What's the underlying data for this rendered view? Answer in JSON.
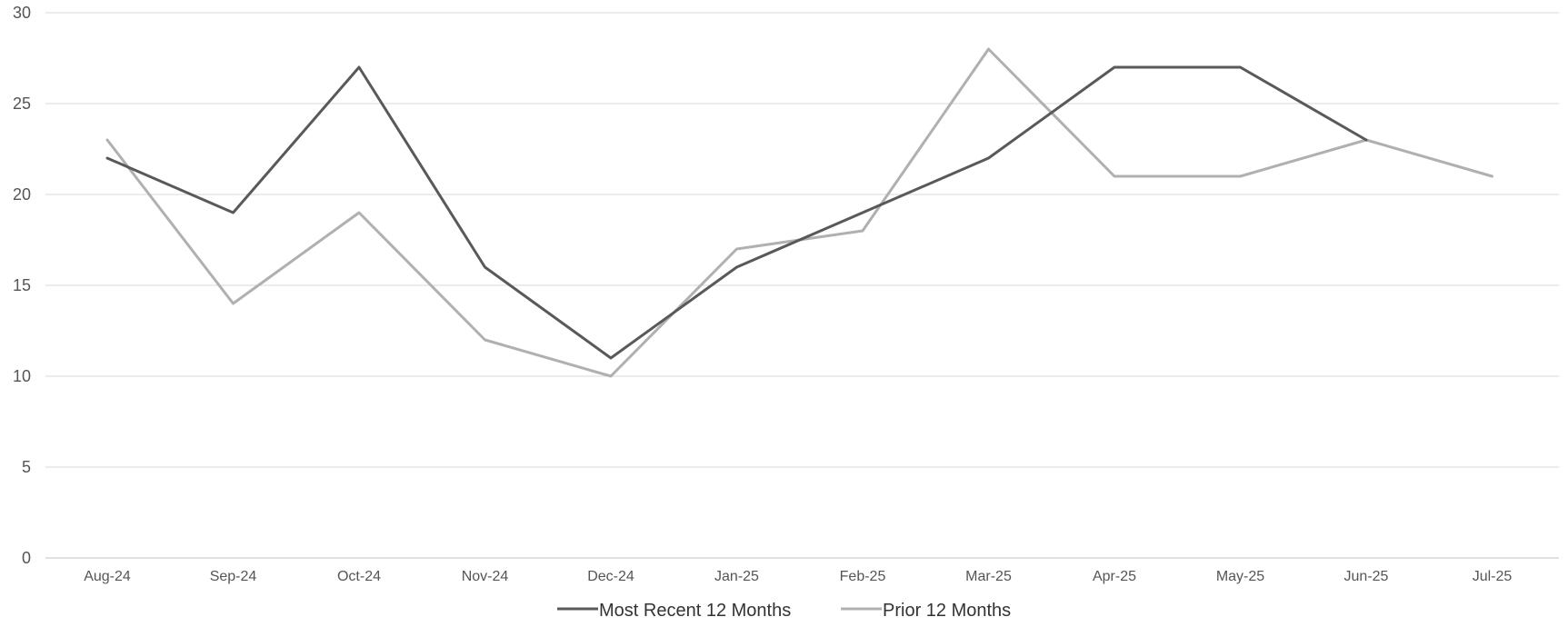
{
  "chart_data": {
    "type": "line",
    "title": "",
    "xlabel": "",
    "ylabel": "",
    "categories": [
      "Aug-24",
      "Sep-24",
      "Oct-24",
      "Nov-24",
      "Dec-24",
      "Jan-25",
      "Feb-25",
      "Mar-25",
      "Apr-25",
      "May-25",
      "Jun-25",
      "Jul-25"
    ],
    "ylim": [
      0,
      30
    ],
    "yticks": [
      "0",
      "5",
      "10",
      "15",
      "20",
      "25",
      "30"
    ],
    "grid": true,
    "legend_position": "bottom",
    "series": [
      {
        "name": "Most Recent 12 Months",
        "color": "#595959",
        "values": [
          22,
          19,
          27,
          16,
          11,
          16,
          19,
          22,
          27,
          27,
          23,
          null
        ]
      },
      {
        "name": "Prior 12 Months",
        "color": "#b0b0b0",
        "values": [
          23,
          14,
          19,
          12,
          10,
          17,
          18,
          28,
          21,
          21,
          23,
          21
        ]
      }
    ]
  }
}
